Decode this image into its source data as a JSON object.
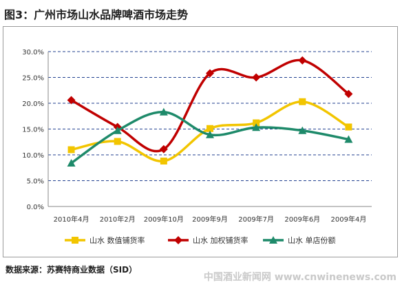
{
  "header": {
    "title": "图3：广州市场山水品牌啤酒市场走势"
  },
  "footer": {
    "source": "数据来源：苏赛特商业数据（SID）",
    "watermark": "中国酒业新闻网 www.cnwinenews.com"
  },
  "chart_data": {
    "type": "line",
    "title": "图3：广州市场山水品牌啤酒市场走势",
    "categories": [
      "2010年4月",
      "2010年2月",
      "2009年10月",
      "2009年9月",
      "2009年7月",
      "2009年6月",
      "2009年4月"
    ],
    "y_tick_labels": [
      "0.0%",
      "5.0%",
      "10.0%",
      "15.0%",
      "20.0%",
      "25.0%",
      "30.0%"
    ],
    "ylim": [
      0,
      30
    ],
    "y_ticks": [
      0,
      5,
      10,
      15,
      20,
      25,
      30
    ],
    "grid": "horizontal dashed",
    "legend_position": "bottom",
    "series": [
      {
        "name": "山水 数值铺货率",
        "color": "#f2c500",
        "marker": "square",
        "values": [
          11.0,
          12.6,
          8.8,
          15.1,
          16.2,
          20.3,
          15.4
        ]
      },
      {
        "name": "山水 加权铺货率",
        "color": "#c00000",
        "marker": "diamond",
        "values": [
          20.6,
          15.4,
          11.1,
          25.8,
          25.0,
          28.3,
          21.8
        ]
      },
      {
        "name": "山水 单店份额",
        "color": "#1e8a6a",
        "marker": "triangle",
        "values": [
          8.4,
          14.7,
          18.3,
          13.9,
          15.3,
          14.7,
          13.0
        ]
      }
    ]
  }
}
